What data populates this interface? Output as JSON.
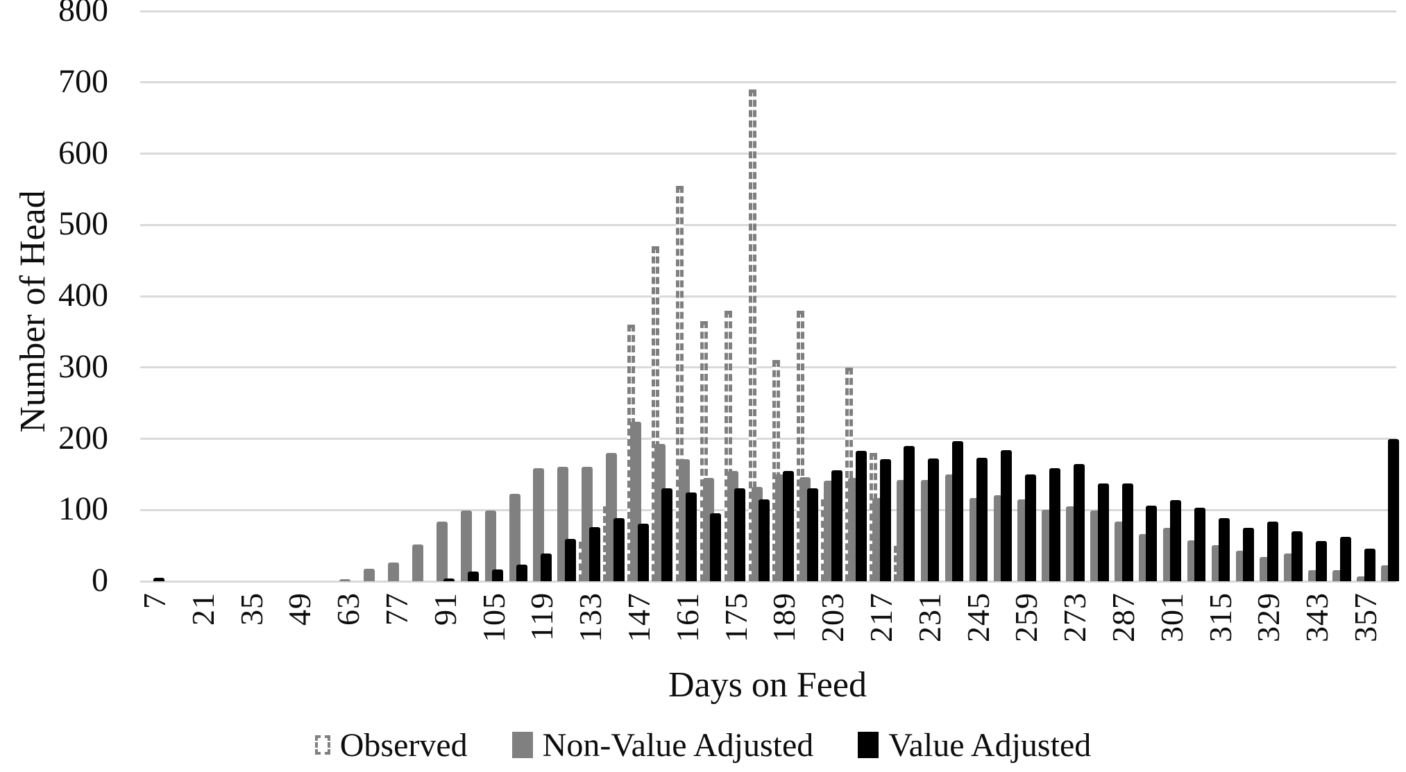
{
  "chart_data": {
    "type": "bar",
    "title": "",
    "xlabel": "Days on Feed",
    "ylabel": "Number of Head",
    "ylim": [
      0,
      800
    ],
    "yticks": [
      0,
      100,
      200,
      300,
      400,
      500,
      600,
      700,
      800
    ],
    "grid": "horizontal",
    "gridline_color": "#d9d9d9",
    "background_color": "#ffffff",
    "legend_position": "bottom",
    "categories": [
      7,
      14,
      21,
      28,
      35,
      42,
      49,
      56,
      63,
      70,
      77,
      84,
      91,
      98,
      105,
      112,
      119,
      126,
      133,
      140,
      147,
      154,
      161,
      168,
      175,
      182,
      189,
      196,
      203,
      210,
      217,
      224,
      231,
      238,
      245,
      252,
      259,
      266,
      273,
      280,
      287,
      294,
      301,
      308,
      315,
      322,
      329,
      336,
      343,
      350,
      357,
      364
    ],
    "xtick_labels": [
      7,
      21,
      35,
      49,
      63,
      77,
      91,
      105,
      119,
      133,
      147,
      161,
      175,
      189,
      203,
      217,
      231,
      245,
      259,
      273,
      287,
      301,
      315,
      329,
      343,
      357
    ],
    "series": [
      {
        "name": "Observed",
        "style": "dotted-outline",
        "color": "#7f7f7f",
        "fill": "#ffffff",
        "values": [
          0,
          0,
          0,
          0,
          0,
          0,
          0,
          0,
          0,
          0,
          0,
          0,
          0,
          0,
          0,
          0,
          0,
          0,
          55,
          105,
          360,
          470,
          555,
          365,
          380,
          690,
          310,
          380,
          115,
          300,
          180,
          50,
          0,
          0,
          0,
          0,
          0,
          0,
          0,
          0,
          0,
          0,
          0,
          0,
          0,
          0,
          0,
          0,
          0,
          0,
          0,
          0
        ]
      },
      {
        "name": "Non-Value Adjusted",
        "style": "solid",
        "color": "#808080",
        "values": [
          0,
          0,
          0,
          0,
          0,
          0,
          0,
          0,
          3,
          18,
          26,
          52,
          84,
          99,
          99,
          123,
          159,
          161,
          161,
          180,
          224,
          193,
          171,
          145,
          155,
          132,
          150,
          146,
          141,
          145,
          117,
          142,
          142,
          150,
          117,
          121,
          115,
          100,
          105,
          99,
          84,
          66,
          75,
          57,
          51,
          43,
          34,
          39,
          16,
          16,
          7,
          22
        ]
      },
      {
        "name": "Value Adjusted",
        "style": "solid",
        "color": "#000000",
        "values": [
          5,
          0,
          0,
          0,
          0,
          0,
          0,
          0,
          0,
          0,
          0,
          0,
          4,
          14,
          17,
          23,
          39,
          59,
          76,
          89,
          81,
          130,
          125,
          95,
          130,
          115,
          155,
          130,
          156,
          183,
          171,
          190,
          172,
          197,
          173,
          184,
          150,
          159,
          164,
          137,
          137,
          106,
          114,
          103,
          89,
          75,
          84,
          70,
          56,
          62,
          46,
          200
        ]
      }
    ]
  }
}
